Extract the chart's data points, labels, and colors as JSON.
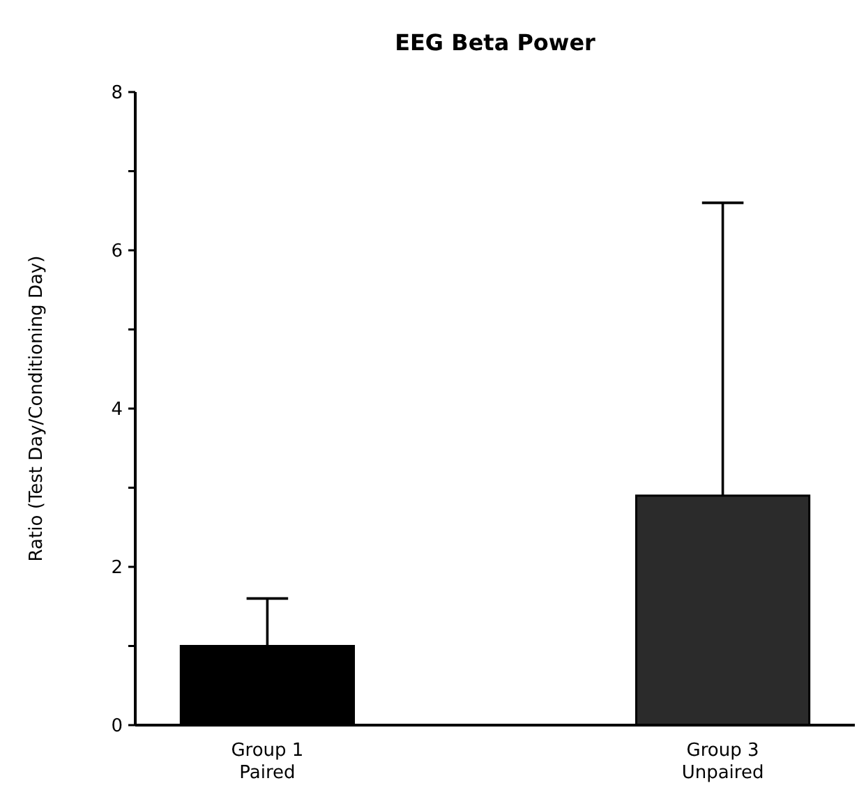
{
  "chart_data": {
    "type": "bar",
    "title": "EEG Beta Power",
    "ylabel": "Ratio (Test Day/Conditioning Day)",
    "categories": [
      "Group 1\nPaired",
      "Group 3\nUnpaired"
    ],
    "values": [
      1.0,
      2.9
    ],
    "colors": [
      "#000000",
      "#2b2b2b"
    ],
    "errors": [
      [
        1.0,
        1.6
      ],
      [
        2.9,
        6.6
      ]
    ],
    "ylim": [
      0,
      8
    ],
    "yticks": [
      0,
      {
        "value": 1,
        "label": null
      },
      2,
      {
        "value": 3,
        "label": null
      },
      4,
      {
        "value": 5,
        "label": null
      },
      6,
      {
        "value": 7,
        "label": null
      },
      8
    ],
    "grid": false
  }
}
